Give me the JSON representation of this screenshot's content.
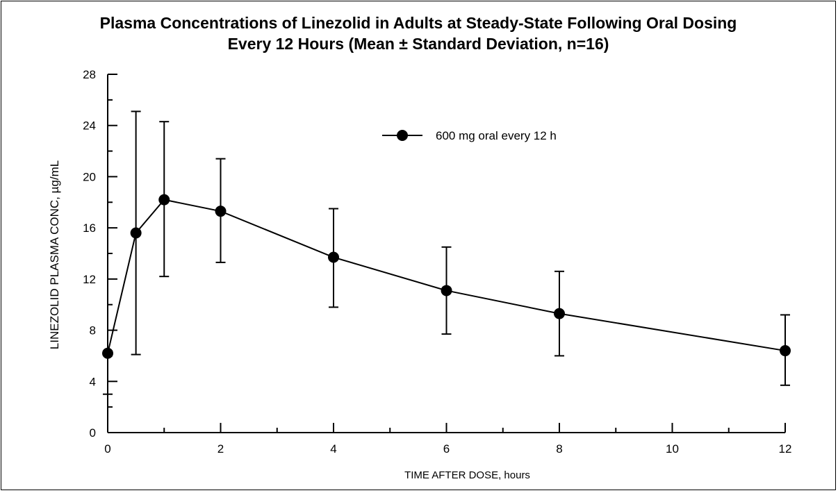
{
  "chart_data": {
    "type": "line",
    "title_line1": "Plasma Concentrations of Linezolid in Adults at Steady-State Following Oral Dosing",
    "title_line2": "Every 12 Hours (Mean ± Standard Deviation, n=16)",
    "xlabel": "TIME AFTER DOSE, hours",
    "ylabel": "LINEZOLID PLASMA CONC, µg/mL",
    "xlim": [
      0,
      12
    ],
    "ylim": [
      0,
      28
    ],
    "x_ticks": [
      0,
      2,
      4,
      6,
      8,
      10,
      12
    ],
    "y_ticks": [
      0,
      4,
      8,
      12,
      16,
      20,
      24,
      28
    ],
    "grid": false,
    "legend_position": "top-right",
    "series": [
      {
        "name": "600 mg oral every 12 h",
        "color": "#000000",
        "marker": "filled-circle",
        "x": [
          0,
          0.5,
          1,
          2,
          4,
          6,
          8,
          12
        ],
        "y": [
          6.2,
          15.6,
          18.2,
          17.3,
          13.7,
          11.1,
          9.3,
          6.4
        ],
        "err_low": [
          3.0,
          6.1,
          12.2,
          13.3,
          9.8,
          7.7,
          6.0,
          3.7
        ],
        "err_high": [
          6.2,
          25.1,
          24.3,
          21.4,
          17.5,
          14.5,
          12.6,
          9.2
        ]
      }
    ]
  }
}
